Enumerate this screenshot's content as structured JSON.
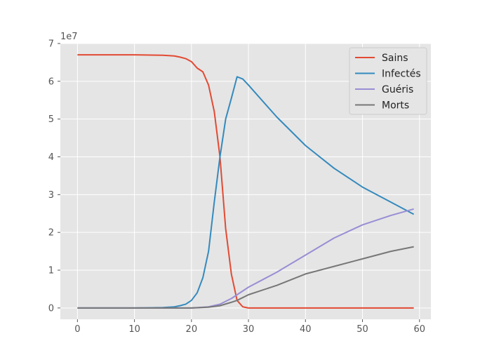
{
  "chart_data": {
    "type": "line",
    "style": "ggplot",
    "y_offset_label": "1e7",
    "xlim": [
      -3,
      62
    ],
    "ylim": [
      -0.3,
      7
    ],
    "xticks": [
      0,
      10,
      20,
      30,
      40,
      50,
      60
    ],
    "yticks": [
      0,
      1,
      2,
      3,
      4,
      5,
      6,
      7
    ],
    "xtick_labels": [
      "0",
      "10",
      "20",
      "30",
      "40",
      "50",
      "60"
    ],
    "ytick_labels": [
      "0",
      "1",
      "2",
      "3",
      "4",
      "5",
      "6",
      "7"
    ],
    "grid": true,
    "legend_position": "top-right",
    "series": [
      {
        "name": "Sains",
        "color": "#E24A33",
        "x": [
          0,
          5,
          10,
          15,
          16,
          17,
          18,
          19,
          20,
          21,
          22,
          23,
          24,
          25,
          26,
          27,
          28,
          29,
          30,
          35,
          40,
          45,
          50,
          55,
          59
        ],
        "y": [
          6.7,
          6.7,
          6.7,
          6.69,
          6.68,
          6.67,
          6.64,
          6.6,
          6.52,
          6.35,
          6.25,
          5.9,
          5.2,
          4.0,
          2.1,
          0.9,
          0.2,
          0.03,
          0.0,
          0.0,
          0.0,
          0.0,
          0.0,
          0.0,
          0.0
        ]
      },
      {
        "name": "Infectés",
        "color": "#348ABD",
        "x": [
          0,
          10,
          15,
          17,
          18,
          19,
          20,
          21,
          22,
          23,
          24,
          25,
          26,
          27,
          28,
          29,
          30,
          35,
          40,
          45,
          50,
          55,
          59
        ],
        "y": [
          0.0,
          0.0,
          0.01,
          0.03,
          0.06,
          0.1,
          0.2,
          0.4,
          0.8,
          1.5,
          2.8,
          4.0,
          5.0,
          5.55,
          6.12,
          6.06,
          5.9,
          5.05,
          4.3,
          3.7,
          3.2,
          2.8,
          2.48
        ]
      },
      {
        "name": "Guéris",
        "color": "#988ED5",
        "x": [
          0,
          20,
          23,
          25,
          27,
          28,
          30,
          35,
          40,
          45,
          50,
          55,
          59
        ],
        "y": [
          0.0,
          0.0,
          0.03,
          0.1,
          0.25,
          0.35,
          0.55,
          0.95,
          1.4,
          1.85,
          2.2,
          2.45,
          2.62
        ]
      },
      {
        "name": "Morts",
        "color": "#777777",
        "x": [
          0,
          20,
          23,
          25,
          27,
          28,
          30,
          35,
          40,
          45,
          50,
          55,
          59
        ],
        "y": [
          0.0,
          0.0,
          0.02,
          0.06,
          0.15,
          0.2,
          0.35,
          0.6,
          0.9,
          1.1,
          1.3,
          1.5,
          1.62
        ]
      }
    ]
  }
}
